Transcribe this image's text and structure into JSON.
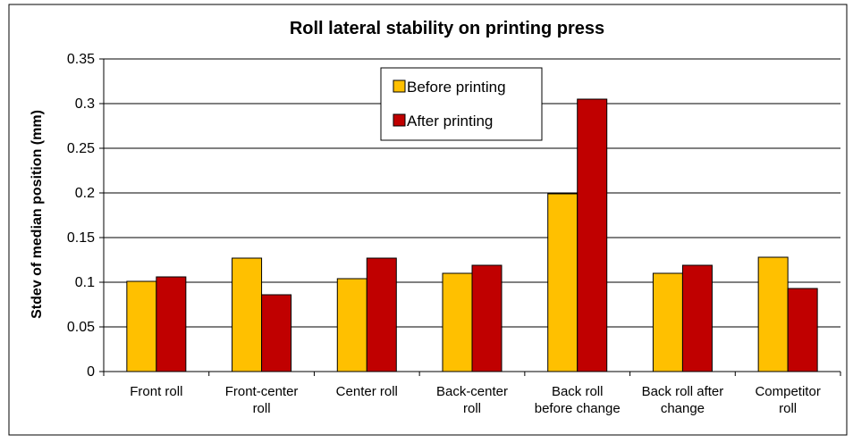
{
  "chart_data": {
    "type": "bar",
    "title": "Roll lateral stability on printing press",
    "xlabel": "",
    "ylabel": "Stdev of median position (mm)",
    "ylim": [
      0,
      0.35
    ],
    "yticks": [
      0,
      0.05,
      0.1,
      0.15,
      0.2,
      0.25,
      0.3,
      0.35
    ],
    "ytick_labels": [
      "0",
      "0.05",
      "0.1",
      "0.15",
      "0.2",
      "0.25",
      "0.3",
      "0.35"
    ],
    "grid": true,
    "legend_position": "top-center",
    "categories": [
      [
        "Front roll"
      ],
      [
        "Front-center",
        "roll"
      ],
      [
        "Center roll"
      ],
      [
        "Back-center",
        "roll"
      ],
      [
        "Back roll",
        "before change"
      ],
      [
        "Back roll after",
        "change"
      ],
      [
        "Competitor",
        "roll"
      ]
    ],
    "series": [
      {
        "name": "Before printing",
        "color": "#FFC000",
        "values": [
          0.101,
          0.127,
          0.104,
          0.11,
          0.199,
          0.11,
          0.128
        ]
      },
      {
        "name": "After printing",
        "color": "#C00000",
        "values": [
          0.106,
          0.086,
          0.127,
          0.119,
          0.305,
          0.119,
          0.093
        ]
      }
    ]
  }
}
